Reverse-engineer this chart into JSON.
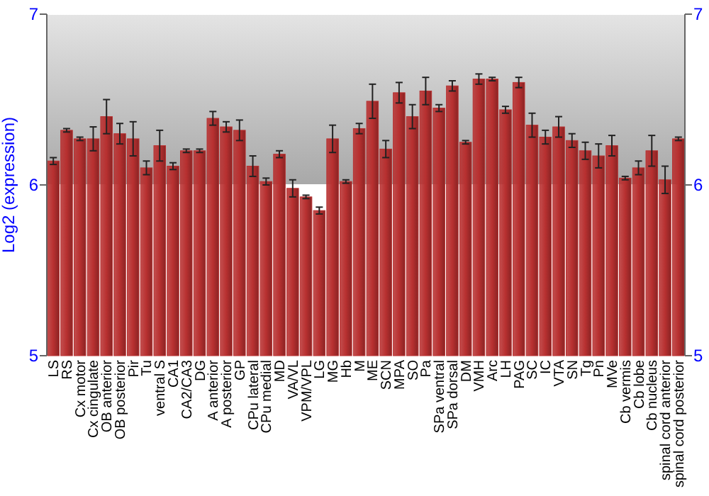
{
  "chart_data": {
    "type": "bar",
    "ylabel": "Log2 (expression)",
    "categories": [
      "LS",
      "RS",
      "Cx motor",
      "Cx cingulate",
      "OB anterior",
      "OB posterior",
      "Pir",
      "Tu",
      "ventral S",
      "CA1",
      "CA2/CA3",
      "DG",
      "A anterior",
      "A posterior",
      "GP",
      "CPu lateral",
      "CPu medial",
      "MD",
      "VA/VL",
      "VPM/VPL",
      "LG",
      "MG",
      "Hb",
      "M",
      "ME",
      "SCN",
      "MPA",
      "SO",
      "Pa",
      "SPa ventral",
      "SPa dorsal",
      "DM",
      "VMH",
      "Arc",
      "LH",
      "PAG",
      "SC",
      "IC",
      "VTA",
      "SN",
      "Tg",
      "Pn",
      "MVe",
      "Cb vermis",
      "Cb lobe",
      "Cb nucleus",
      "spinal cord anterior",
      "spinal cord posterior"
    ],
    "values": [
      6.14,
      6.32,
      6.27,
      6.27,
      6.4,
      6.3,
      6.27,
      6.1,
      6.23,
      6.11,
      6.2,
      6.2,
      6.39,
      6.34,
      6.32,
      6.11,
      6.02,
      6.18,
      5.98,
      5.93,
      5.85,
      6.27,
      6.02,
      6.33,
      6.49,
      6.21,
      6.54,
      6.4,
      6.55,
      6.45,
      6.58,
      6.25,
      6.62,
      6.62,
      6.44,
      6.6,
      6.35,
      6.28,
      6.34,
      6.26,
      6.2,
      6.17,
      6.23,
      6.04,
      6.1,
      6.2,
      6.03,
      6.27
    ],
    "errors": [
      0.02,
      0.01,
      0.01,
      0.07,
      0.1,
      0.06,
      0.1,
      0.04,
      0.09,
      0.02,
      0.01,
      0.01,
      0.04,
      0.03,
      0.06,
      0.06,
      0.02,
      0.02,
      0.05,
      0.01,
      0.02,
      0.08,
      0.01,
      0.03,
      0.1,
      0.05,
      0.06,
      0.07,
      0.08,
      0.02,
      0.03,
      0.01,
      0.03,
      0.01,
      0.02,
      0.03,
      0.07,
      0.04,
      0.06,
      0.04,
      0.05,
      0.07,
      0.06,
      0.01,
      0.04,
      0.09,
      0.08,
      0.01
    ],
    "color": "#b83030",
    "ylim": [
      5,
      7
    ],
    "yticks": [
      5,
      6,
      7
    ],
    "y2lim": [
      5,
      7
    ],
    "y2ticks": [
      5,
      6,
      7
    ],
    "grid": "y"
  }
}
